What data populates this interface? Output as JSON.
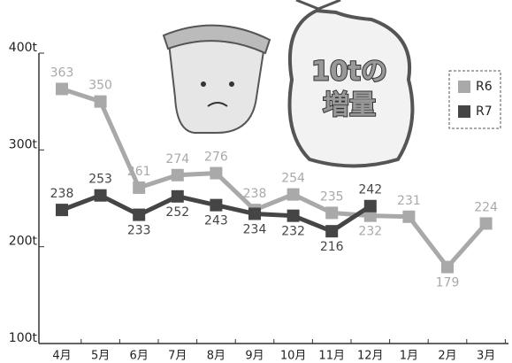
{
  "chart_data": {
    "type": "line",
    "categories": [
      "4月",
      "5月",
      "6月",
      "7月",
      "8月",
      "9月",
      "10月",
      "11月",
      "12月",
      "1月",
      "2月",
      "3月"
    ],
    "series": [
      {
        "name": "R6",
        "color": "#a9a9a9",
        "values": [
          363,
          350,
          261,
          274,
          276,
          238,
          254,
          235,
          232,
          231,
          179,
          224
        ]
      },
      {
        "name": "R7",
        "color": "#454545",
        "values": [
          238,
          253,
          233,
          252,
          243,
          234,
          232,
          216,
          242,
          null,
          null,
          null
        ]
      }
    ],
    "ylim": [
      100,
      400
    ],
    "yticks": [
      {
        "value": 100,
        "label": "100t"
      },
      {
        "value": 200,
        "label": "200t"
      },
      {
        "value": 300,
        "label": "300t"
      },
      {
        "value": 400,
        "label": "400t"
      }
    ],
    "annotations": [
      "10tの",
      "増量"
    ],
    "legend": "top-right"
  }
}
